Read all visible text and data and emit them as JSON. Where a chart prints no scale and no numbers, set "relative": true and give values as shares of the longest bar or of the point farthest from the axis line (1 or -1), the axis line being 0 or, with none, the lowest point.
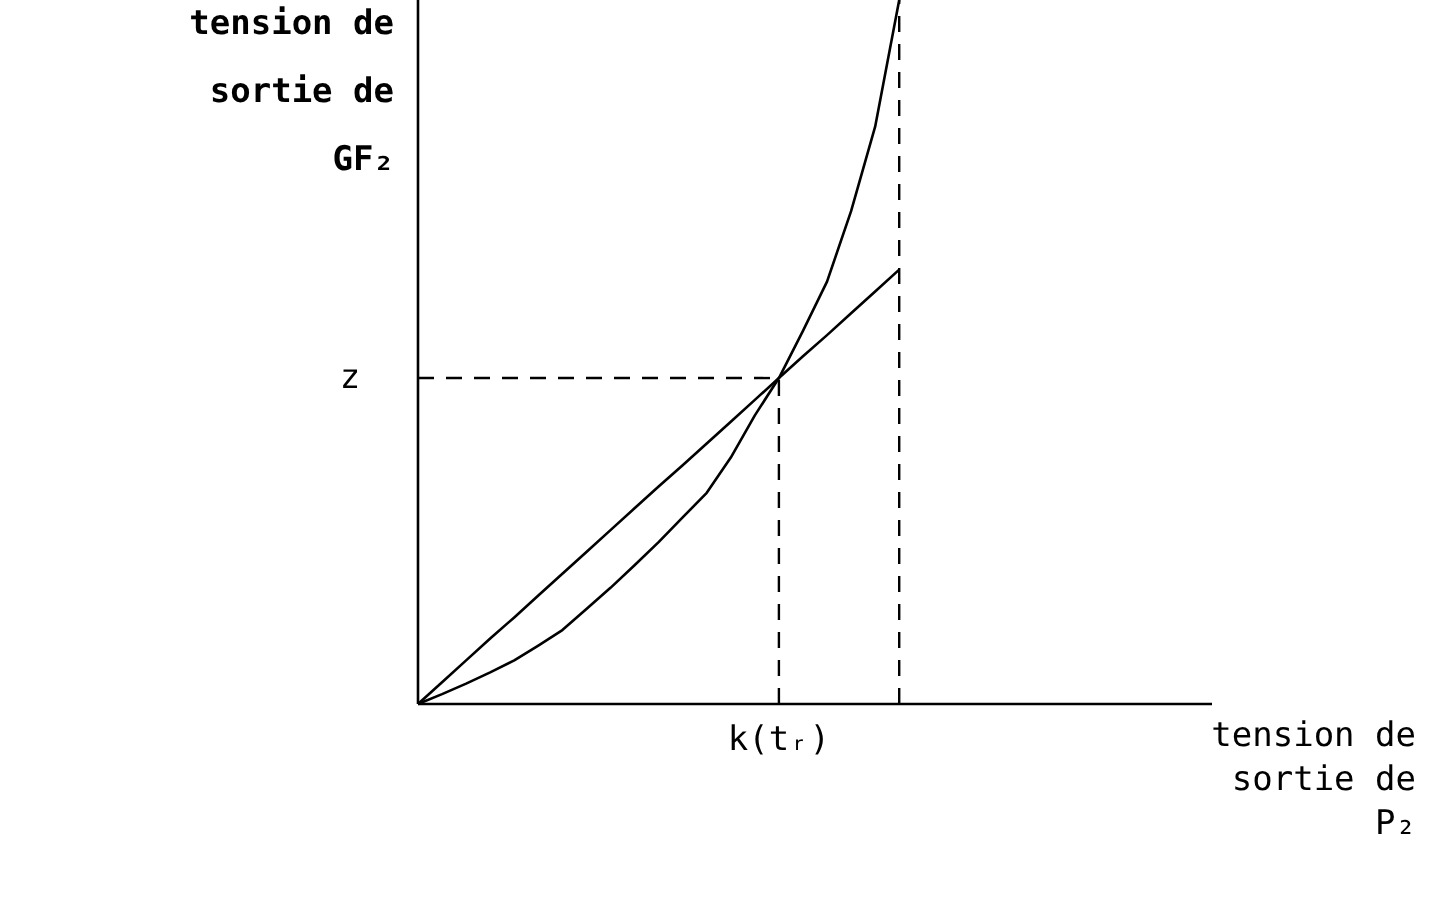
{
  "chart_data": {
    "type": "line",
    "relative": true,
    "ylabel": "tension de\nsortie de\nGF₂",
    "xlabel": "tension de\nsortie de\nP₂",
    "marker": "none",
    "line_style": "solid",
    "categories": [
      null,
      null,
      null,
      null,
      null,
      null,
      null,
      null,
      null,
      null,
      null,
      null,
      null,
      null,
      null,
      null,
      null,
      null,
      null,
      null,
      null,
      null,
      null,
      null,
      null,
      null,
      null,
      null,
      null,
      null,
      null,
      null,
      null,
      null
    ],
    "series": [
      {
        "color": "#000000",
        "values": [
          0,
          0.031,
          0.062,
          0.093,
          0.123,
          0.154,
          0.185,
          0.216,
          0.247,
          0.278,
          0.309,
          0.339,
          0.37,
          0.401,
          0.432,
          0.463,
          0.494,
          0.524,
          0.555,
          0.586,
          0.617,
          null,
          null,
          null,
          null,
          null,
          null,
          null,
          null,
          null,
          null,
          null,
          null,
          null
        ]
      },
      {
        "color": "#000000",
        "values": [
          0,
          0.014,
          0.029,
          0.045,
          0.062,
          0.083,
          0.105,
          0.135,
          0.165,
          0.197,
          0.23,
          0.265,
          0.3,
          0.35,
          0.41,
          0.463,
          0.53,
          0.6,
          0.7,
          0.82,
          1.0,
          null,
          null,
          null,
          null,
          null,
          null,
          null,
          null,
          null,
          null,
          null,
          null,
          null
        ]
      }
    ],
    "ref_lines": [
      {
        "axis": "x",
        "label": "k(tᵣ)",
        "line_style": "dashed",
        "color": "#000000"
      },
      {
        "axis": "x",
        "line_style": "dashed",
        "color": "#000000"
      },
      {
        "axis": "y",
        "value": 0.463,
        "label": "z",
        "line_style": "dashed",
        "color": "#000000"
      }
    ]
  }
}
